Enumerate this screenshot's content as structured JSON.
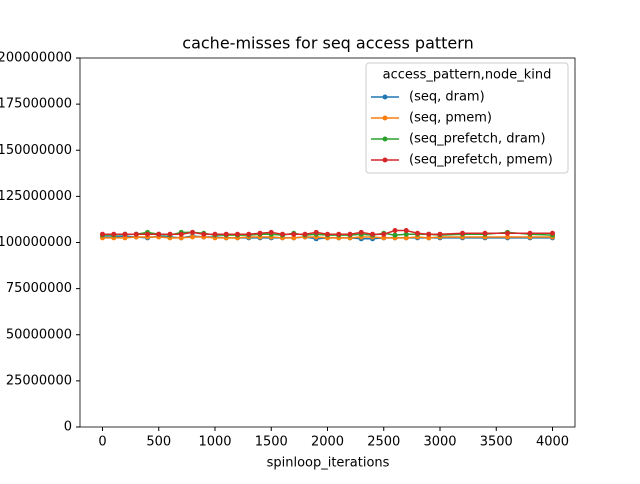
{
  "chart_data": {
    "type": "line",
    "title": "cache-misses for seq access pattern",
    "x_label": "spinloop_iterations",
    "legend_title": "access_pattern,node_kind",
    "legend": "upper right",
    "x": [
      0,
      100,
      200,
      300,
      400,
      500,
      600,
      700,
      800,
      900,
      1000,
      1100,
      1200,
      1300,
      1400,
      1500,
      1600,
      1700,
      1800,
      1900,
      2000,
      2100,
      2200,
      2300,
      2400,
      2500,
      2600,
      2700,
      2800,
      2900,
      3000,
      3200,
      3400,
      3600,
      3800,
      4000
    ],
    "series": [
      {
        "name": "(seq, dram)",
        "color": "#1f77b4",
        "values": [
          103000000,
          103000000,
          103500000,
          103000000,
          102500000,
          103500000,
          103000000,
          102500000,
          103500000,
          103000000,
          103000000,
          102500000,
          102500000,
          102500000,
          102500000,
          102500000,
          102500000,
          102500000,
          103000000,
          102000000,
          102500000,
          102500000,
          102500000,
          102000000,
          102000000,
          102500000,
          102500000,
          102500000,
          102500000,
          102500000,
          102500000,
          102500000,
          102500000,
          102500000,
          102500000,
          102500000
        ]
      },
      {
        "name": "(seq, pmem)",
        "color": "#ff7f0e",
        "values": [
          102500000,
          102500000,
          102500000,
          103000000,
          103000000,
          103000000,
          102500000,
          102500000,
          103000000,
          103000000,
          102500000,
          102500000,
          102500000,
          103000000,
          103000000,
          103000000,
          102500000,
          102500000,
          103000000,
          103000000,
          102500000,
          102500000,
          102500000,
          103000000,
          103000000,
          102500000,
          102500000,
          102500000,
          103000000,
          102500000,
          103000000,
          103000000,
          103000000,
          103000000,
          103000000,
          103000000
        ]
      },
      {
        "name": "(seq_prefetch, dram)",
        "color": "#2ca02c",
        "values": [
          104000000,
          104000000,
          104500000,
          104500000,
          105500000,
          104500000,
          104000000,
          105500000,
          105500000,
          105000000,
          104000000,
          104000000,
          104000000,
          104000000,
          104500000,
          104500000,
          104000000,
          105000000,
          104000000,
          104500000,
          104000000,
          104000000,
          104000000,
          104500000,
          104000000,
          105000000,
          104000000,
          104500000,
          104500000,
          104500000,
          104000000,
          104500000,
          104500000,
          105500000,
          104500000,
          104000000
        ]
      },
      {
        "name": "(seq_prefetch, pmem)",
        "color": "#d62728",
        "values": [
          104500000,
          104500000,
          104500000,
          104500000,
          104500000,
          104500000,
          104500000,
          104500000,
          105500000,
          104500000,
          104500000,
          104500000,
          104500000,
          104500000,
          105000000,
          105500000,
          104500000,
          104500000,
          104500000,
          105500000,
          104500000,
          104500000,
          104500000,
          105500000,
          104500000,
          104500000,
          106500000,
          106500000,
          105000000,
          104500000,
          104500000,
          105000000,
          105000000,
          105000000,
          105000000,
          105000000
        ]
      }
    ],
    "xlim": [
      -200,
      4200
    ],
    "xticks": [
      0,
      500,
      1000,
      1500,
      2000,
      2500,
      3000,
      3500,
      4000
    ],
    "ylim": [
      0,
      200000000
    ],
    "yticks": [
      0,
      25000000,
      50000000,
      75000000,
      100000000,
      125000000,
      150000000,
      175000000,
      200000000
    ]
  }
}
